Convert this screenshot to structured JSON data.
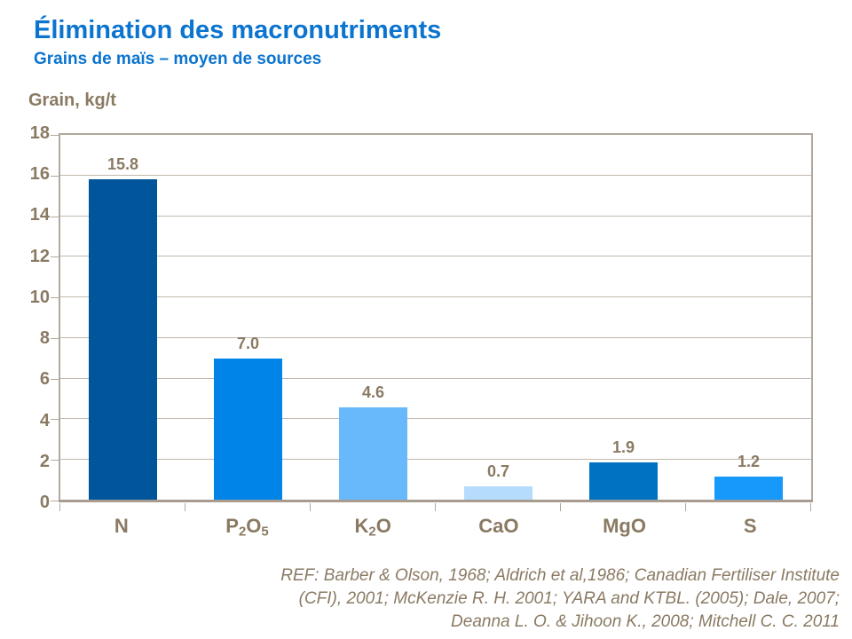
{
  "header": {
    "title": "Élimination des macronutriments",
    "subtitle": "Grains de maïs – moyen de sources",
    "title_color": "#0B74CF"
  },
  "axis_title": "Grain, kg/t",
  "chart_data": {
    "type": "bar",
    "title": "Élimination des macronutriments",
    "subtitle": "Grains de maïs – moyen de sources",
    "ylabel": "Grain, kg/t",
    "xlabel": "",
    "categories": [
      "N",
      "P2O5",
      "K2O",
      "CaO",
      "MgO",
      "S"
    ],
    "categories_rich": [
      [
        {
          "t": "N"
        }
      ],
      [
        {
          "t": "P"
        },
        {
          "t": "2",
          "sub": true
        },
        {
          "t": "O"
        },
        {
          "t": "5",
          "sub": true
        }
      ],
      [
        {
          "t": "K"
        },
        {
          "t": "2",
          "sub": true
        },
        {
          "t": "O"
        }
      ],
      [
        {
          "t": "CaO"
        }
      ],
      [
        {
          "t": "MgO"
        }
      ],
      [
        {
          "t": "S"
        }
      ]
    ],
    "values": [
      15.8,
      7.0,
      4.6,
      0.7,
      1.9,
      1.2
    ],
    "value_labels": [
      "15.8",
      "7.0",
      "4.6",
      "0.7",
      "1.9",
      "1.2"
    ],
    "bar_colors": [
      "#00559B",
      "#0084E8",
      "#68B9FB",
      "#B5DCFC",
      "#0072C2",
      "#1699FB"
    ],
    "ylim": [
      0,
      18
    ],
    "ytick_step": 2,
    "grid": true,
    "legend": "none",
    "text_color": "#8A7A63",
    "grid_color": "#C2B8AD",
    "border_color": "#B3A89D"
  },
  "footer": {
    "lines": [
      "REF: Barber & Olson, 1968; Aldrich et al,1986; Canadian Fertiliser Institute",
      "(CFI), 2001; McKenzie R. H. 2001; YARA and KTBL. (2005); Dale, 2007;",
      "Deanna L. O. & Jihoon K.,  2008; Mitchell C. C. 2011"
    ]
  }
}
